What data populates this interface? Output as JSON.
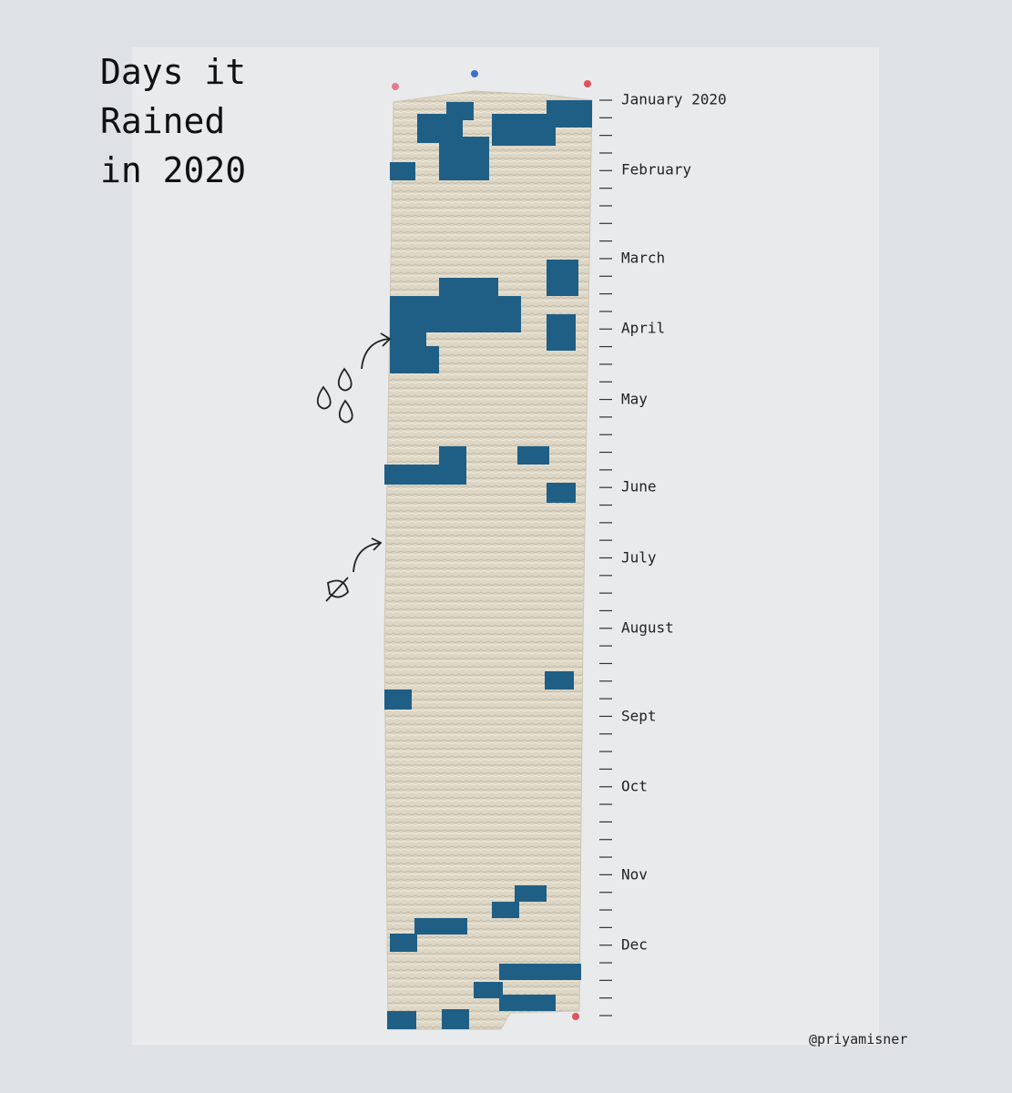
{
  "title": {
    "lines": [
      "Days it",
      "Rained",
      "in 2020"
    ]
  },
  "months": [
    "January 2020",
    "February",
    "March",
    "April",
    "May",
    "June",
    "July",
    "August",
    "Sept",
    "Oct",
    "Nov",
    "Dec"
  ],
  "credit": "@priyamisner"
}
